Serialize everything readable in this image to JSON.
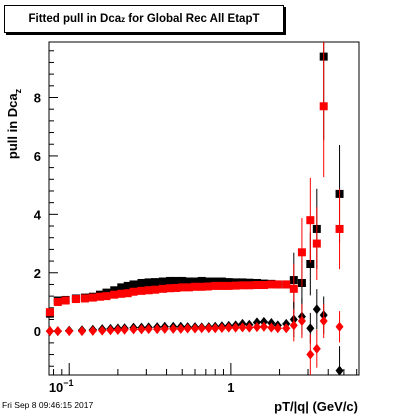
{
  "title": {
    "main": "Fitted pull in Dca",
    "sub": "z",
    "rest": " for Global Rec All EtapT"
  },
  "footer_stamp": "Fri Sep  8 09:46:15 2017",
  "colors": {
    "black_series": "#000000",
    "red_series": "#ff0000",
    "frame": "#000000"
  },
  "chart_data": {
    "type": "scatter",
    "xlabel": "pT/|q| (GeV/c)",
    "ylabel": {
      "main": "pull in Dca",
      "sub": "z"
    },
    "xscale": "log",
    "xlim": [
      0.075,
      6.2
    ],
    "ylim": [
      -1.5,
      9.9
    ],
    "x_tick_labels": [
      {
        "value": 0.1,
        "label": "10",
        "exp": "−1"
      },
      {
        "value": 1,
        "label": "1"
      }
    ],
    "y_ticks": [
      0,
      2,
      4,
      6,
      8
    ],
    "series": [
      {
        "marker": "square",
        "color": "black",
        "points": [
          [
            0.076,
            0.6
          ],
          [
            0.085,
            1.05
          ],
          [
            0.095,
            1.07
          ],
          [
            0.11,
            1.12
          ],
          [
            0.125,
            1.15
          ],
          [
            0.14,
            1.18
          ],
          [
            0.155,
            1.25
          ],
          [
            0.17,
            1.32
          ],
          [
            0.19,
            1.4
          ],
          [
            0.21,
            1.5
          ],
          [
            0.23,
            1.55
          ],
          [
            0.25,
            1.6
          ],
          [
            0.28,
            1.65
          ],
          [
            0.31,
            1.67
          ],
          [
            0.34,
            1.68
          ],
          [
            0.38,
            1.7
          ],
          [
            0.42,
            1.72
          ],
          [
            0.46,
            1.72
          ],
          [
            0.5,
            1.72
          ],
          [
            0.55,
            1.7
          ],
          [
            0.6,
            1.7
          ],
          [
            0.66,
            1.72
          ],
          [
            0.72,
            1.7
          ],
          [
            0.8,
            1.7
          ],
          [
            0.88,
            1.7
          ],
          [
            0.97,
            1.68
          ],
          [
            1.07,
            1.67
          ],
          [
            1.18,
            1.67
          ],
          [
            1.3,
            1.66
          ],
          [
            1.45,
            1.65
          ],
          [
            1.6,
            1.63
          ],
          [
            1.78,
            1.62
          ],
          [
            1.95,
            1.6
          ],
          [
            2.2,
            1.6
          ],
          [
            2.45,
            1.75
          ],
          [
            2.75,
            1.65
          ],
          [
            3.1,
            2.3
          ],
          [
            3.4,
            3.5
          ],
          [
            3.75,
            9.4
          ],
          [
            4.7,
            4.7
          ]
        ]
      },
      {
        "marker": "square",
        "color": "red",
        "points": [
          [
            0.076,
            0.65
          ],
          [
            0.085,
            1.0
          ],
          [
            0.095,
            1.05
          ],
          [
            0.11,
            1.1
          ],
          [
            0.125,
            1.12
          ],
          [
            0.14,
            1.15
          ],
          [
            0.155,
            1.18
          ],
          [
            0.17,
            1.2
          ],
          [
            0.19,
            1.25
          ],
          [
            0.21,
            1.28
          ],
          [
            0.23,
            1.3
          ],
          [
            0.25,
            1.35
          ],
          [
            0.28,
            1.38
          ],
          [
            0.31,
            1.4
          ],
          [
            0.34,
            1.42
          ],
          [
            0.38,
            1.45
          ],
          [
            0.42,
            1.47
          ],
          [
            0.46,
            1.48
          ],
          [
            0.5,
            1.5
          ],
          [
            0.55,
            1.5
          ],
          [
            0.6,
            1.52
          ],
          [
            0.66,
            1.52
          ],
          [
            0.72,
            1.53
          ],
          [
            0.8,
            1.55
          ],
          [
            0.88,
            1.55
          ],
          [
            0.97,
            1.55
          ],
          [
            1.07,
            1.56
          ],
          [
            1.18,
            1.57
          ],
          [
            1.3,
            1.57
          ],
          [
            1.45,
            1.58
          ],
          [
            1.6,
            1.58
          ],
          [
            1.78,
            1.6
          ],
          [
            1.95,
            1.6
          ],
          [
            2.2,
            1.6
          ],
          [
            2.45,
            1.45
          ],
          [
            2.75,
            2.7
          ],
          [
            3.1,
            3.8
          ],
          [
            3.4,
            3.0
          ],
          [
            3.75,
            7.7
          ],
          [
            4.7,
            3.5
          ]
        ]
      },
      {
        "marker": "diamond",
        "color": "black",
        "points": [
          [
            0.076,
            0.0
          ],
          [
            0.085,
            0.0
          ],
          [
            0.1,
            0.02
          ],
          [
            0.12,
            0.03
          ],
          [
            0.14,
            0.05
          ],
          [
            0.16,
            0.07
          ],
          [
            0.18,
            0.08
          ],
          [
            0.2,
            0.09
          ],
          [
            0.22,
            0.1
          ],
          [
            0.25,
            0.12
          ],
          [
            0.28,
            0.12
          ],
          [
            0.31,
            0.13
          ],
          [
            0.35,
            0.14
          ],
          [
            0.39,
            0.15
          ],
          [
            0.44,
            0.15
          ],
          [
            0.49,
            0.15
          ],
          [
            0.54,
            0.14
          ],
          [
            0.6,
            0.14
          ],
          [
            0.66,
            0.13
          ],
          [
            0.73,
            0.14
          ],
          [
            0.8,
            0.15
          ],
          [
            0.88,
            0.17
          ],
          [
            0.97,
            0.18
          ],
          [
            1.07,
            0.2
          ],
          [
            1.18,
            0.25
          ],
          [
            1.3,
            0.22
          ],
          [
            1.45,
            0.3
          ],
          [
            1.6,
            0.32
          ],
          [
            1.78,
            0.28
          ],
          [
            1.95,
            0.2
          ],
          [
            2.2,
            0.25
          ],
          [
            2.45,
            0.4
          ],
          [
            2.75,
            0.5
          ],
          [
            3.1,
            0.1
          ],
          [
            3.4,
            0.75
          ],
          [
            3.75,
            0.55
          ],
          [
            4.7,
            -1.35
          ]
        ]
      },
      {
        "marker": "diamond",
        "color": "red",
        "points": [
          [
            0.076,
            0.0
          ],
          [
            0.085,
            0.0
          ],
          [
            0.1,
            0.0
          ],
          [
            0.12,
            0.0
          ],
          [
            0.14,
            0.01
          ],
          [
            0.16,
            0.02
          ],
          [
            0.18,
            0.03
          ],
          [
            0.2,
            0.04
          ],
          [
            0.22,
            0.05
          ],
          [
            0.25,
            0.06
          ],
          [
            0.28,
            0.06
          ],
          [
            0.31,
            0.07
          ],
          [
            0.35,
            0.07
          ],
          [
            0.39,
            0.08
          ],
          [
            0.44,
            0.08
          ],
          [
            0.49,
            0.08
          ],
          [
            0.54,
            0.09
          ],
          [
            0.6,
            0.09
          ],
          [
            0.66,
            0.1
          ],
          [
            0.73,
            0.1
          ],
          [
            0.8,
            0.1
          ],
          [
            0.88,
            0.11
          ],
          [
            0.97,
            0.12
          ],
          [
            1.07,
            0.12
          ],
          [
            1.18,
            0.13
          ],
          [
            1.3,
            0.12
          ],
          [
            1.45,
            0.14
          ],
          [
            1.6,
            0.15
          ],
          [
            1.78,
            0.12
          ],
          [
            1.95,
            0.1
          ],
          [
            2.2,
            0.1
          ],
          [
            2.45,
            0.2
          ],
          [
            2.75,
            0.35
          ],
          [
            3.1,
            -0.8
          ],
          [
            3.4,
            -0.6
          ],
          [
            3.75,
            0.35
          ],
          [
            4.7,
            0.15
          ]
        ]
      }
    ]
  }
}
